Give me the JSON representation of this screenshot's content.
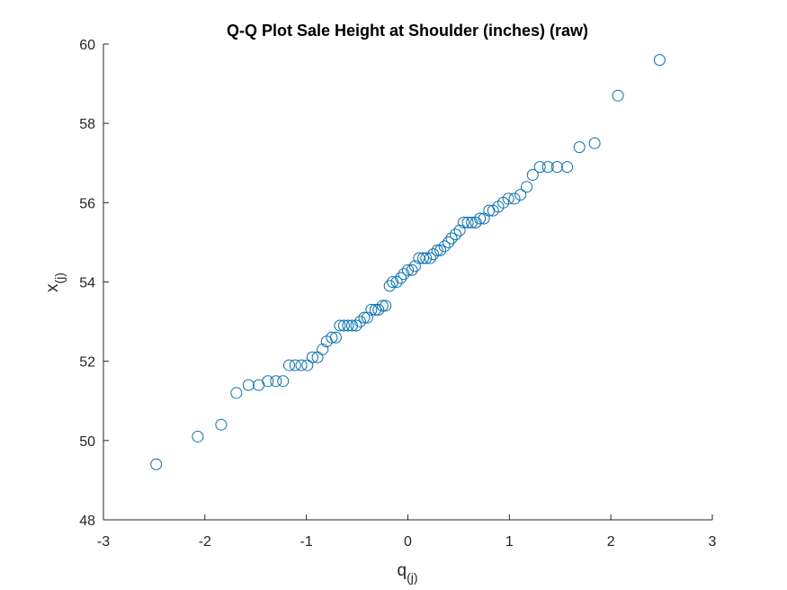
{
  "chart_data": {
    "type": "scatter",
    "title": "Q-Q Plot Sale Height at Shoulder (inches) (raw)",
    "xlabel": {
      "base": "q",
      "sub": "(j)"
    },
    "ylabel": {
      "base": "x",
      "sub": "(j)"
    },
    "xlim": [
      -3,
      3
    ],
    "ylim": [
      48,
      60
    ],
    "xticks": [
      -3,
      -2,
      -1,
      0,
      1,
      2,
      3
    ],
    "yticks": [
      48,
      50,
      52,
      54,
      56,
      58,
      60
    ],
    "grid": false,
    "marker": "circle-open",
    "color": "#0072BD",
    "x": [
      -2.48,
      -2.07,
      -1.84,
      -1.69,
      -1.57,
      -1.47,
      -1.38,
      -1.3,
      -1.23,
      -1.17,
      -1.11,
      -1.05,
      -0.99,
      -0.94,
      -0.89,
      -0.84,
      -0.8,
      -0.75,
      -0.71,
      -0.67,
      -0.63,
      -0.59,
      -0.55,
      -0.51,
      -0.47,
      -0.43,
      -0.4,
      -0.36,
      -0.32,
      -0.29,
      -0.25,
      -0.22,
      -0.18,
      -0.15,
      -0.11,
      -0.07,
      -0.04,
      0.0,
      0.04,
      0.07,
      0.11,
      0.15,
      0.18,
      0.22,
      0.25,
      0.29,
      0.32,
      0.36,
      0.4,
      0.43,
      0.47,
      0.51,
      0.55,
      0.59,
      0.63,
      0.67,
      0.71,
      0.75,
      0.8,
      0.84,
      0.89,
      0.94,
      0.99,
      1.05,
      1.11,
      1.17,
      1.23,
      1.3,
      1.38,
      1.47,
      1.57,
      1.69,
      1.84,
      2.07,
      2.48
    ],
    "y": [
      49.4,
      50.1,
      50.4,
      51.2,
      51.4,
      51.4,
      51.5,
      51.5,
      51.5,
      51.9,
      51.9,
      51.9,
      51.9,
      52.1,
      52.1,
      52.3,
      52.5,
      52.6,
      52.6,
      52.9,
      52.9,
      52.9,
      52.9,
      52.9,
      53.0,
      53.1,
      53.1,
      53.3,
      53.3,
      53.3,
      53.4,
      53.4,
      53.9,
      54.0,
      54.0,
      54.1,
      54.2,
      54.3,
      54.3,
      54.4,
      54.6,
      54.6,
      54.6,
      54.6,
      54.7,
      54.8,
      54.8,
      54.9,
      55.0,
      55.1,
      55.2,
      55.3,
      55.5,
      55.5,
      55.5,
      55.5,
      55.6,
      55.6,
      55.8,
      55.8,
      55.9,
      56.0,
      56.1,
      56.1,
      56.2,
      56.4,
      56.7,
      56.9,
      56.9,
      56.9,
      56.9,
      57.4,
      57.5,
      58.7,
      59.6
    ]
  }
}
